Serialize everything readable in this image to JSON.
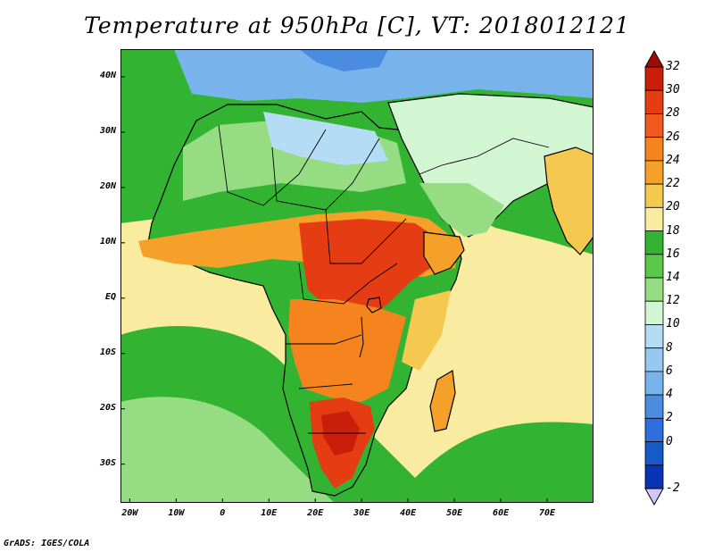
{
  "title": "Temperature at 950hPa [C], VT: 2018012121",
  "credit": "GrADS: IGES/COLA",
  "map": {
    "lon_range": [
      -22,
      80
    ],
    "lat_range": [
      -37,
      45
    ],
    "y_ticks": [
      {
        "lat": 40,
        "label": "40N"
      },
      {
        "lat": 30,
        "label": "30N"
      },
      {
        "lat": 20,
        "label": "20N"
      },
      {
        "lat": 10,
        "label": "10N"
      },
      {
        "lat": 0,
        "label": "EQ"
      },
      {
        "lat": -10,
        "label": "10S"
      },
      {
        "lat": -20,
        "label": "20S"
      },
      {
        "lat": -30,
        "label": "30S"
      }
    ],
    "x_ticks": [
      {
        "lon": -20,
        "label": "20W"
      },
      {
        "lon": -10,
        "label": "10W"
      },
      {
        "lon": 0,
        "label": "0"
      },
      {
        "lon": 10,
        "label": "10E"
      },
      {
        "lon": 20,
        "label": "20E"
      },
      {
        "lon": 30,
        "label": "30E"
      },
      {
        "lon": 40,
        "label": "40E"
      },
      {
        "lon": 50,
        "label": "50E"
      },
      {
        "lon": 60,
        "label": "60E"
      },
      {
        "lon": 70,
        "label": "70E"
      }
    ]
  },
  "colorbar": {
    "levels": [
      "32",
      "30",
      "28",
      "26",
      "24",
      "22",
      "20",
      "18",
      "16",
      "14",
      "12",
      "10",
      "8",
      "6",
      "4",
      "2",
      "0",
      "-2"
    ],
    "colors_top_to_bottom": [
      "#c81e0a",
      "#e63c14",
      "#f05a1e",
      "#f5841e",
      "#f5a028",
      "#f5c850",
      "#f9eba0",
      "#32b432",
      "#5ac846",
      "#96dc82",
      "#d2f5d2",
      "#b4dcf5",
      "#96c8f0",
      "#78b4eb",
      "#4b8ce1",
      "#2d6edc",
      "#145ac8",
      "#0a32b4"
    ],
    "over_color": "#a00a00",
    "under_color": "#d2c8f5"
  }
}
